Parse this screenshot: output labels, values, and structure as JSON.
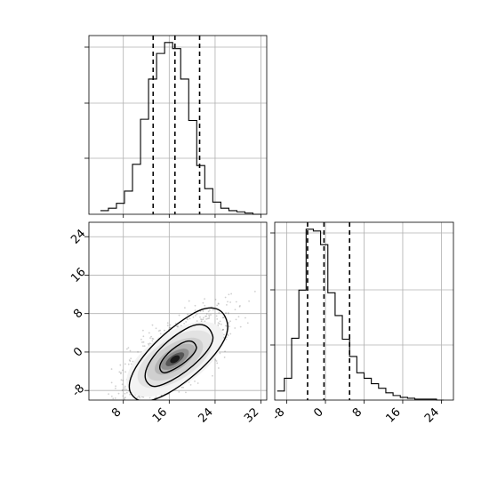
{
  "chart_data": [
    {
      "type": "histogram",
      "variable": "x",
      "xlim": [
        2,
        33
      ],
      "bin_edges": [
        4,
        5.4,
        6.8,
        8.2,
        9.6,
        11,
        12.4,
        13.8,
        15.2,
        16.6,
        18,
        19.4,
        20.8,
        22.2,
        23.6,
        25,
        26.4,
        27.8,
        29.2,
        30.6,
        32
      ],
      "counts": [
        3,
        5,
        9,
        19,
        41,
        78,
        111,
        132,
        141,
        136,
        111,
        77,
        40,
        21,
        10,
        5,
        3,
        2,
        1,
        0
      ],
      "quantile_lines": [
        13.2,
        17.0,
        21.3
      ],
      "grid": true
    },
    {
      "type": "scatter",
      "subtype": "2d-density-with-contours",
      "x_variable": "x",
      "y_variable": "y",
      "xlim": [
        2,
        33
      ],
      "ylim": [
        -10,
        27
      ],
      "xticks": [
        "8",
        "16",
        "24",
        "32"
      ],
      "yticks": [
        "24",
        "16",
        "8",
        "0",
        "-8"
      ],
      "density_center": [
        17,
        -1.5
      ],
      "contour_levels": [
        "inner",
        "middle",
        "outer"
      ],
      "grid": true
    },
    {
      "type": "histogram",
      "variable": "y",
      "xlim": [
        -10.5,
        26.5
      ],
      "xticks": [
        "-8",
        "0",
        "8",
        "16",
        "24"
      ],
      "bin_edges": [
        -10,
        -8.5,
        -7,
        -5.5,
        -4,
        -2.5,
        -1,
        0.5,
        2,
        3.5,
        5,
        6.5,
        8,
        9.5,
        11,
        12.5,
        14,
        15.5,
        17,
        18.5,
        20,
        21.5,
        23,
        24.5
      ],
      "counts": [
        10,
        24,
        68,
        121,
        188,
        186,
        171,
        118,
        93,
        67,
        48,
        30,
        24,
        18,
        13,
        8,
        5,
        3,
        2,
        1,
        1,
        1,
        0
      ],
      "quantile_lines": [
        -3.7,
        -0.3,
        5.0
      ],
      "grid": true
    }
  ]
}
